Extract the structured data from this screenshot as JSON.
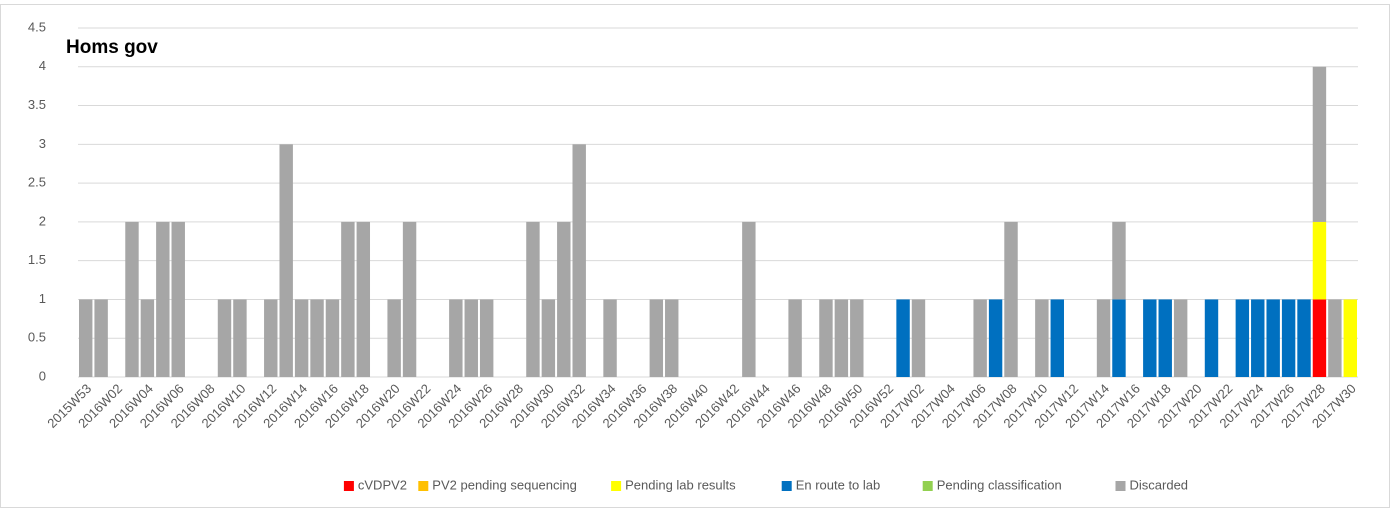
{
  "chart_data": {
    "type": "stacked_bar",
    "title": "Homs gov",
    "categories": [
      "2015W53",
      null,
      "2016W02",
      null,
      "2016W04",
      null,
      "2016W06",
      null,
      "2016W08",
      null,
      "2016W10",
      null,
      "2016W12",
      null,
      "2016W14",
      null,
      "2016W16",
      null,
      "2016W18",
      null,
      "2016W20",
      null,
      "2016W22",
      null,
      "2016W24",
      null,
      "2016W26",
      null,
      "2016W28",
      null,
      "2016W30",
      null,
      "2016W32",
      null,
      "2016W34",
      null,
      "2016W36",
      null,
      "2016W38",
      null,
      "2016W40",
      null,
      "2016W42",
      null,
      "2016W44",
      null,
      "2016W46",
      null,
      "2016W48",
      null,
      "2016W50",
      null,
      "2016W52",
      null,
      "2017W02",
      null,
      "2017W04",
      null,
      "2017W06",
      null,
      "2017W08",
      null,
      "2017W10",
      null,
      "2017W12",
      null,
      "2017W14",
      null,
      "2017W16",
      null,
      "2017W18",
      null,
      "2017W20",
      null,
      "2017W22",
      null,
      "2017W24",
      null,
      "2017W26",
      null,
      "2017W28",
      null,
      "2017W30"
    ],
    "series": [
      {
        "name": "cVDPV2",
        "color": "#ff0000",
        "values": [
          0,
          0,
          0,
          0,
          0,
          0,
          0,
          0,
          0,
          0,
          0,
          0,
          0,
          0,
          0,
          0,
          0,
          0,
          0,
          0,
          0,
          0,
          0,
          0,
          0,
          0,
          0,
          0,
          0,
          0,
          0,
          0,
          0,
          0,
          0,
          0,
          0,
          0,
          0,
          0,
          0,
          0,
          0,
          0,
          0,
          0,
          0,
          0,
          0,
          0,
          0,
          0,
          0,
          0,
          0,
          0,
          0,
          0,
          0,
          0,
          0,
          0,
          0,
          0,
          0,
          0,
          0,
          0,
          0,
          0,
          0,
          0,
          0,
          0,
          0,
          0,
          0,
          0,
          0,
          0,
          1,
          0,
          0
        ]
      },
      {
        "name": "PV2 pending sequencing",
        "color": "#ffc000",
        "values": [
          0,
          0,
          0,
          0,
          0,
          0,
          0,
          0,
          0,
          0,
          0,
          0,
          0,
          0,
          0,
          0,
          0,
          0,
          0,
          0,
          0,
          0,
          0,
          0,
          0,
          0,
          0,
          0,
          0,
          0,
          0,
          0,
          0,
          0,
          0,
          0,
          0,
          0,
          0,
          0,
          0,
          0,
          0,
          0,
          0,
          0,
          0,
          0,
          0,
          0,
          0,
          0,
          0,
          0,
          0,
          0,
          0,
          0,
          0,
          0,
          0,
          0,
          0,
          0,
          0,
          0,
          0,
          0,
          0,
          0,
          0,
          0,
          0,
          0,
          0,
          0,
          0,
          0,
          0,
          0,
          0,
          0,
          0
        ]
      },
      {
        "name": "Pending lab results",
        "color": "#ffff00",
        "values": [
          0,
          0,
          0,
          0,
          0,
          0,
          0,
          0,
          0,
          0,
          0,
          0,
          0,
          0,
          0,
          0,
          0,
          0,
          0,
          0,
          0,
          0,
          0,
          0,
          0,
          0,
          0,
          0,
          0,
          0,
          0,
          0,
          0,
          0,
          0,
          0,
          0,
          0,
          0,
          0,
          0,
          0,
          0,
          0,
          0,
          0,
          0,
          0,
          0,
          0,
          0,
          0,
          0,
          0,
          0,
          0,
          0,
          0,
          0,
          0,
          0,
          0,
          0,
          0,
          0,
          0,
          0,
          0,
          0,
          0,
          0,
          0,
          0,
          0,
          0,
          0,
          0,
          0,
          0,
          0,
          1,
          0,
          1
        ]
      },
      {
        "name": "En route to lab",
        "color": "#0070c0",
        "values": [
          0,
          0,
          0,
          0,
          0,
          0,
          0,
          0,
          0,
          0,
          0,
          0,
          0,
          0,
          0,
          0,
          0,
          0,
          0,
          0,
          0,
          0,
          0,
          0,
          0,
          0,
          0,
          0,
          0,
          0,
          0,
          0,
          0,
          0,
          0,
          0,
          0,
          0,
          0,
          0,
          0,
          0,
          0,
          0,
          0,
          0,
          0,
          0,
          0,
          0,
          0,
          0,
          0,
          1,
          0,
          0,
          0,
          0,
          0,
          1,
          0,
          0,
          0,
          1,
          0,
          0,
          0,
          1,
          0,
          1,
          1,
          0,
          0,
          1,
          0,
          1,
          1,
          1,
          1,
          1,
          0,
          0,
          0
        ]
      },
      {
        "name": "Pending classification",
        "color": "#92d050",
        "values": [
          0,
          0,
          0,
          0,
          0,
          0,
          0,
          0,
          0,
          0,
          0,
          0,
          0,
          0,
          0,
          0,
          0,
          0,
          0,
          0,
          0,
          0,
          0,
          0,
          0,
          0,
          0,
          0,
          0,
          0,
          0,
          0,
          0,
          0,
          0,
          0,
          0,
          0,
          0,
          0,
          0,
          0,
          0,
          0,
          0,
          0,
          0,
          0,
          0,
          0,
          0,
          0,
          0,
          0,
          0,
          0,
          0,
          0,
          0,
          0,
          0,
          0,
          0,
          0,
          0,
          0,
          0,
          0,
          0,
          0,
          0,
          0,
          0,
          0,
          0,
          0,
          0,
          0,
          0,
          0,
          0,
          0,
          0
        ]
      },
      {
        "name": "Discarded",
        "color": "#a6a6a6",
        "values": [
          1,
          1,
          0,
          2,
          1,
          2,
          2,
          0,
          0,
          1,
          1,
          0,
          1,
          3,
          1,
          1,
          1,
          2,
          2,
          0,
          1,
          2,
          0,
          0,
          1,
          1,
          1,
          0,
          0,
          2,
          1,
          2,
          3,
          0,
          1,
          0,
          0,
          1,
          1,
          0,
          0,
          0,
          0,
          2,
          0,
          0,
          1,
          0,
          1,
          1,
          1,
          0,
          0,
          0,
          1,
          0,
          0,
          0,
          1,
          0,
          2,
          0,
          1,
          0,
          0,
          0,
          1,
          1,
          0,
          0,
          0,
          1,
          0,
          0,
          0,
          0,
          0,
          0,
          0,
          0,
          2,
          1,
          0
        ]
      }
    ],
    "ylim": [
      0,
      4.5
    ],
    "yticks": [
      0,
      0.5,
      1,
      1.5,
      2,
      2.5,
      3,
      3.5,
      4,
      4.5
    ],
    "grid": true,
    "legend": "bottom"
  }
}
